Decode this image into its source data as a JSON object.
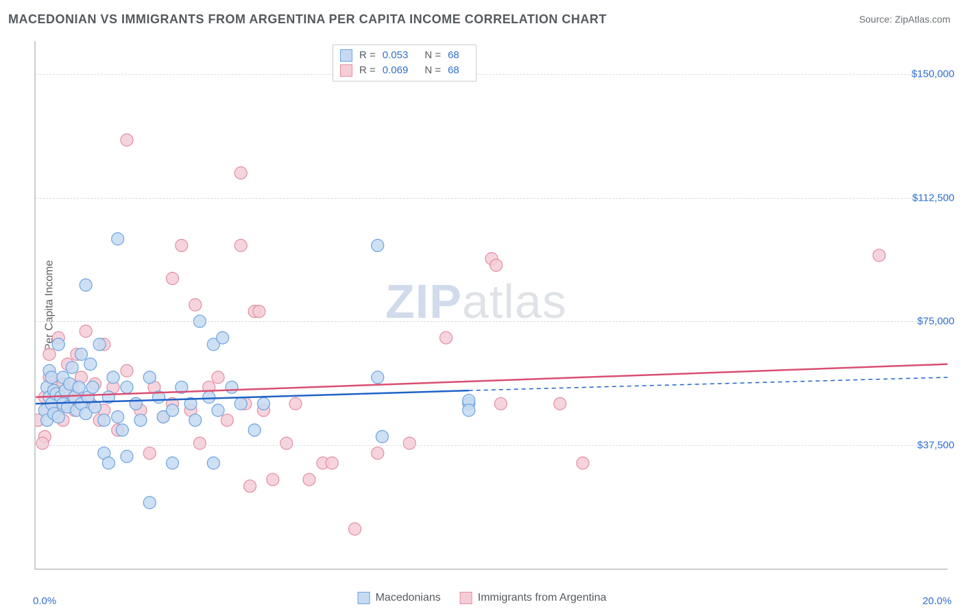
{
  "title": "MACEDONIAN VS IMMIGRANTS FROM ARGENTINA PER CAPITA INCOME CORRELATION CHART",
  "source_label": "Source:",
  "source_value": "ZipAtlas.com",
  "yaxis_label": "Per Capita Income",
  "watermark": {
    "a": "ZIP",
    "b": "atlas"
  },
  "chart": {
    "type": "scatter",
    "background_color": "#ffffff",
    "grid_color": "#d7dbde",
    "axis_color": "#c9ccd0",
    "text_color": "#5c5f63",
    "tick_color": "#2f6fd0",
    "xlim": [
      0,
      20
    ],
    "ylim": [
      0,
      160000
    ],
    "yticks": [
      37500,
      75000,
      112500,
      150000
    ],
    "ytick_labels": [
      "$37,500",
      "$75,000",
      "$112,500",
      "$150,000"
    ],
    "xtick_labels": {
      "min": "0.0%",
      "max": "20.0%"
    },
    "marker_radius": 9,
    "marker_stroke_width": 1.2,
    "series": [
      {
        "name": "Macedonians",
        "fill": "#c6dbf2",
        "stroke": "#6aa2e0",
        "R": "0.053",
        "N": "68",
        "regression": {
          "color": "#1f62c7",
          "width": 2.5,
          "y_at_xmin": 50000,
          "y_at_half": 54000,
          "y_at_xmax": 58000,
          "solid_until_x": 9.5
        },
        "points": [
          {
            "x": 0.2,
            "y": 48000
          },
          {
            "x": 0.25,
            "y": 55000
          },
          {
            "x": 0.25,
            "y": 45000
          },
          {
            "x": 0.3,
            "y": 52000
          },
          {
            "x": 0.3,
            "y": 60000
          },
          {
            "x": 0.35,
            "y": 58000
          },
          {
            "x": 0.35,
            "y": 50000
          },
          {
            "x": 0.4,
            "y": 54000
          },
          {
            "x": 0.4,
            "y": 47000
          },
          {
            "x": 0.45,
            "y": 53000
          },
          {
            "x": 0.5,
            "y": 68000
          },
          {
            "x": 0.5,
            "y": 46000
          },
          {
            "x": 0.55,
            "y": 52000
          },
          {
            "x": 0.6,
            "y": 58000
          },
          {
            "x": 0.6,
            "y": 50000
          },
          {
            "x": 0.65,
            "y": 54000
          },
          {
            "x": 0.7,
            "y": 49000
          },
          {
            "x": 0.75,
            "y": 56000
          },
          {
            "x": 0.8,
            "y": 61000
          },
          {
            "x": 0.85,
            "y": 52000
          },
          {
            "x": 0.9,
            "y": 48000
          },
          {
            "x": 0.95,
            "y": 55000
          },
          {
            "x": 1.0,
            "y": 65000
          },
          {
            "x": 1.0,
            "y": 50000
          },
          {
            "x": 1.1,
            "y": 86000
          },
          {
            "x": 1.1,
            "y": 47000
          },
          {
            "x": 1.15,
            "y": 52000
          },
          {
            "x": 1.2,
            "y": 62000
          },
          {
            "x": 1.25,
            "y": 55000
          },
          {
            "x": 1.3,
            "y": 49000
          },
          {
            "x": 1.4,
            "y": 68000
          },
          {
            "x": 1.5,
            "y": 45000
          },
          {
            "x": 1.5,
            "y": 35000
          },
          {
            "x": 1.6,
            "y": 52000
          },
          {
            "x": 1.6,
            "y": 32000
          },
          {
            "x": 1.7,
            "y": 58000
          },
          {
            "x": 1.8,
            "y": 46000
          },
          {
            "x": 1.8,
            "y": 100000
          },
          {
            "x": 1.9,
            "y": 42000
          },
          {
            "x": 2.0,
            "y": 55000
          },
          {
            "x": 2.0,
            "y": 34000
          },
          {
            "x": 2.2,
            "y": 50000
          },
          {
            "x": 2.3,
            "y": 45000
          },
          {
            "x": 2.5,
            "y": 58000
          },
          {
            "x": 2.5,
            "y": 20000
          },
          {
            "x": 2.7,
            "y": 52000
          },
          {
            "x": 2.8,
            "y": 46000
          },
          {
            "x": 3.0,
            "y": 48000
          },
          {
            "x": 3.0,
            "y": 32000
          },
          {
            "x": 3.2,
            "y": 55000
          },
          {
            "x": 3.4,
            "y": 50000
          },
          {
            "x": 3.5,
            "y": 45000
          },
          {
            "x": 3.6,
            "y": 75000
          },
          {
            "x": 3.8,
            "y": 52000
          },
          {
            "x": 3.9,
            "y": 68000
          },
          {
            "x": 3.9,
            "y": 32000
          },
          {
            "x": 4.0,
            "y": 48000
          },
          {
            "x": 4.1,
            "y": 70000
          },
          {
            "x": 4.3,
            "y": 55000
          },
          {
            "x": 4.5,
            "y": 50000
          },
          {
            "x": 4.8,
            "y": 42000
          },
          {
            "x": 5.0,
            "y": 50000
          },
          {
            "x": 7.5,
            "y": 98000
          },
          {
            "x": 7.5,
            "y": 58000
          },
          {
            "x": 7.6,
            "y": 40000
          },
          {
            "x": 9.5,
            "y": 50000
          },
          {
            "x": 9.5,
            "y": 51000
          },
          {
            "x": 9.5,
            "y": 48000
          }
        ]
      },
      {
        "name": "Immigrants from Argentina",
        "fill": "#f5cdd7",
        "stroke": "#e38ca0",
        "R": "0.069",
        "N": "68",
        "regression": {
          "color": "#d94e72",
          "width": 2.5,
          "y_at_xmin": 52000,
          "y_at_xmax": 62000,
          "solid_until_x": 20
        },
        "points": [
          {
            "x": 0.05,
            "y": 45000
          },
          {
            "x": 0.2,
            "y": 52000
          },
          {
            "x": 0.25,
            "y": 48000
          },
          {
            "x": 0.3,
            "y": 58000
          },
          {
            "x": 0.3,
            "y": 65000
          },
          {
            "x": 0.35,
            "y": 50000
          },
          {
            "x": 0.4,
            "y": 55000
          },
          {
            "x": 0.45,
            "y": 52000
          },
          {
            "x": 0.5,
            "y": 48000
          },
          {
            "x": 0.5,
            "y": 70000
          },
          {
            "x": 0.6,
            "y": 56000
          },
          {
            "x": 0.6,
            "y": 45000
          },
          {
            "x": 0.7,
            "y": 62000
          },
          {
            "x": 0.75,
            "y": 50000
          },
          {
            "x": 0.8,
            "y": 55000
          },
          {
            "x": 0.85,
            "y": 48000
          },
          {
            "x": 0.9,
            "y": 65000
          },
          {
            "x": 0.95,
            "y": 52000
          },
          {
            "x": 1.0,
            "y": 58000
          },
          {
            "x": 1.1,
            "y": 72000
          },
          {
            "x": 1.2,
            "y": 50000
          },
          {
            "x": 1.3,
            "y": 56000
          },
          {
            "x": 1.4,
            "y": 45000
          },
          {
            "x": 1.5,
            "y": 68000
          },
          {
            "x": 1.5,
            "y": 48000
          },
          {
            "x": 1.7,
            "y": 55000
          },
          {
            "x": 1.8,
            "y": 42000
          },
          {
            "x": 2.0,
            "y": 130000
          },
          {
            "x": 2.0,
            "y": 60000
          },
          {
            "x": 2.2,
            "y": 50000
          },
          {
            "x": 2.3,
            "y": 48000
          },
          {
            "x": 2.5,
            "y": 35000
          },
          {
            "x": 2.6,
            "y": 55000
          },
          {
            "x": 2.8,
            "y": 46000
          },
          {
            "x": 3.0,
            "y": 50000
          },
          {
            "x": 3.0,
            "y": 88000
          },
          {
            "x": 3.2,
            "y": 98000
          },
          {
            "x": 3.4,
            "y": 48000
          },
          {
            "x": 3.5,
            "y": 80000
          },
          {
            "x": 3.6,
            "y": 38000
          },
          {
            "x": 3.8,
            "y": 55000
          },
          {
            "x": 4.0,
            "y": 58000
          },
          {
            "x": 4.2,
            "y": 45000
          },
          {
            "x": 4.5,
            "y": 98000
          },
          {
            "x": 4.5,
            "y": 120000
          },
          {
            "x": 4.6,
            "y": 50000
          },
          {
            "x": 4.7,
            "y": 25000
          },
          {
            "x": 4.8,
            "y": 78000
          },
          {
            "x": 4.9,
            "y": 78000
          },
          {
            "x": 5.0,
            "y": 48000
          },
          {
            "x": 5.2,
            "y": 27000
          },
          {
            "x": 5.5,
            "y": 38000
          },
          {
            "x": 5.7,
            "y": 50000
          },
          {
            "x": 6.0,
            "y": 27000
          },
          {
            "x": 6.3,
            "y": 32000
          },
          {
            "x": 6.5,
            "y": 32000
          },
          {
            "x": 7.0,
            "y": 12000
          },
          {
            "x": 7.5,
            "y": 35000
          },
          {
            "x": 8.2,
            "y": 38000
          },
          {
            "x": 9.0,
            "y": 70000
          },
          {
            "x": 10.0,
            "y": 94000
          },
          {
            "x": 10.1,
            "y": 92000
          },
          {
            "x": 10.2,
            "y": 50000
          },
          {
            "x": 11.5,
            "y": 50000
          },
          {
            "x": 12.0,
            "y": 32000
          },
          {
            "x": 18.5,
            "y": 95000
          },
          {
            "x": 0.2,
            "y": 40000
          },
          {
            "x": 0.15,
            "y": 38000
          }
        ]
      }
    ]
  },
  "legend_top": {
    "r_label": "R =",
    "n_label": "N ="
  }
}
